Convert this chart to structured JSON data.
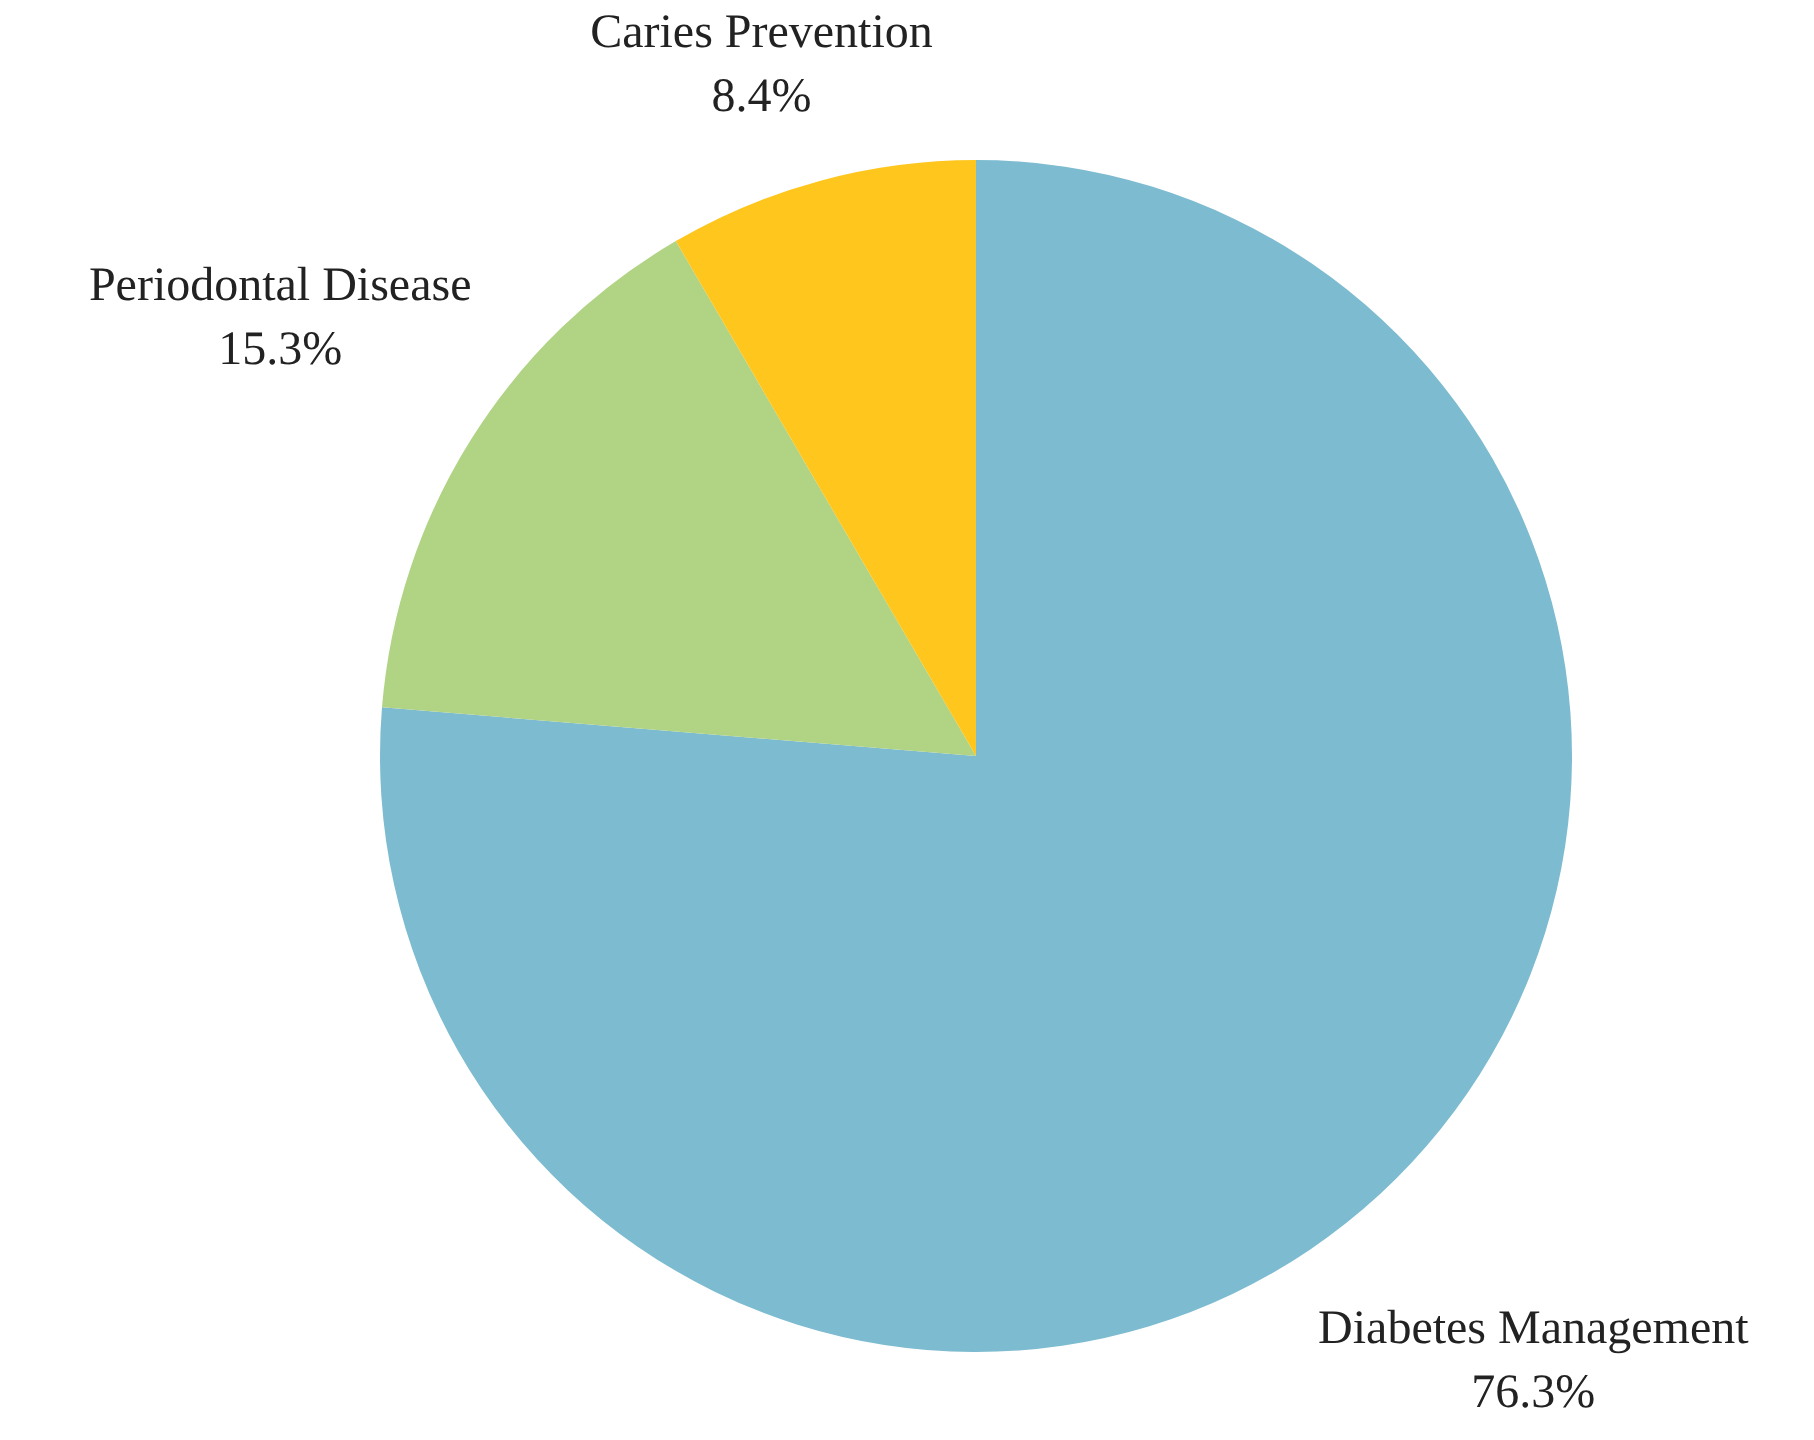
{
  "chart_data": {
    "type": "pie",
    "categories": [
      "Diabetes Management",
      "Periodontal Disease",
      "Caries Prevention"
    ],
    "values": [
      76.3,
      15.3,
      8.4
    ],
    "colors": [
      "#7dbbd0",
      "#b0d384",
      "#ffc61e"
    ],
    "value_labels": [
      "76.3%",
      "15.3%",
      "8.4%"
    ],
    "legend": false
  }
}
